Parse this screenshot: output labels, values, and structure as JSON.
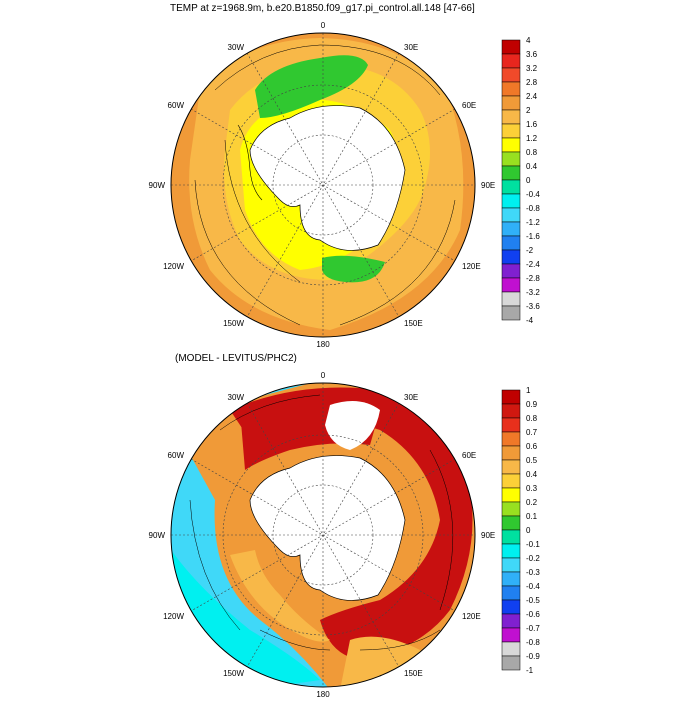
{
  "top_panel": {
    "title": "TEMP at z=1968.9m, b.e20.B1850.f09_g17.pi_control.all.148 [47-66]",
    "longitude_labels": [
      "0",
      "30E",
      "60E",
      "90E",
      "120E",
      "150E",
      "180",
      "150W",
      "120W",
      "90W",
      "60W",
      "30W"
    ],
    "colorbar": {
      "labels": [
        "4",
        "3.6",
        "3.2",
        "2.8",
        "2.4",
        "2",
        "1.6",
        "1.2",
        "0.8",
        "0.4",
        "0",
        "-0.4",
        "-0.8",
        "-1.2",
        "-1.6",
        "-2",
        "-2.4",
        "-2.8",
        "-3.2",
        "-3.6",
        "-4"
      ],
      "colors": [
        "#c00000",
        "#e8261e",
        "#f04a2a",
        "#f07828",
        "#f09a38",
        "#f8b848",
        "#fcd038",
        "#ffff00",
        "#98e020",
        "#30c830",
        "#00e0a0",
        "#00f0f0",
        "#40d8f8",
        "#30b0f8",
        "#2080f0",
        "#1040f0",
        "#8020d0",
        "#c010d0",
        "#d8d8d8",
        "#a8a8a8"
      ]
    },
    "colors": {
      "ocean_main": "#f8b848",
      "ocean_outer": "#f09a38",
      "warm_band": "#fcd038",
      "cold": "#ffff00",
      "green": "#30c830",
      "land": "#ffffff"
    }
  },
  "bottom_panel": {
    "title": "(MODEL - LEVITUS/PHC2)",
    "longitude_labels": [
      "0",
      "30E",
      "60E",
      "90E",
      "120E",
      "150E",
      "180",
      "150W",
      "120W",
      "90W",
      "60W",
      "30W"
    ],
    "colorbar": {
      "labels": [
        "1",
        "0.9",
        "0.8",
        "0.7",
        "0.6",
        "0.5",
        "0.4",
        "0.3",
        "0.2",
        "0.1",
        "0",
        "-0.1",
        "-0.2",
        "-0.3",
        "-0.4",
        "-0.5",
        "-0.6",
        "-0.7",
        "-0.8",
        "-0.9",
        "-1"
      ],
      "colors": [
        "#c00000",
        "#d01810",
        "#e8301c",
        "#f07828",
        "#f09a38",
        "#f8b848",
        "#fcd038",
        "#ffff00",
        "#98e020",
        "#30c830",
        "#00e0a0",
        "#00f0f0",
        "#40d8f8",
        "#30b0f8",
        "#2080f0",
        "#1040f0",
        "#8020d0",
        "#c010d0",
        "#d8d8d8",
        "#a8a8a8"
      ]
    },
    "colors": {
      "positive_strong": "#c81010",
      "positive": "#f09a38",
      "weak": "#fcd038",
      "negative": "#00f0f0",
      "negative_mid": "#40d8f8",
      "land": "#ffffff"
    }
  }
}
